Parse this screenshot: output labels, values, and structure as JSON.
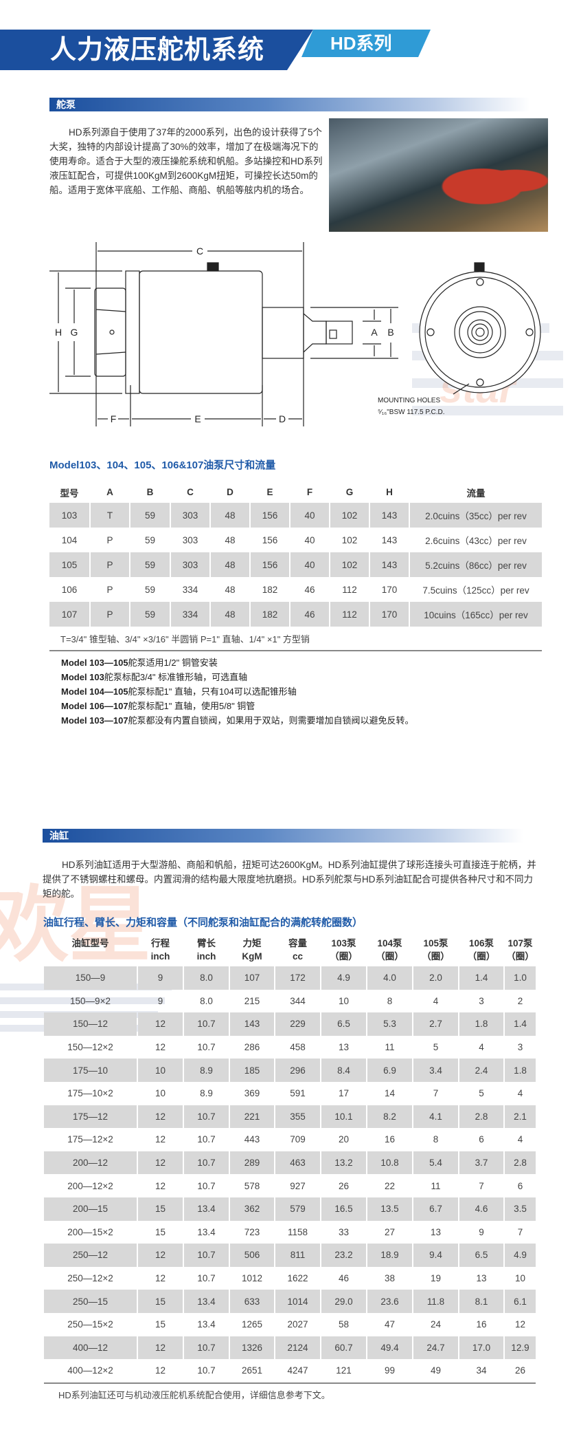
{
  "header": {
    "title": "人力液压舵机系统",
    "series": "HD系列"
  },
  "pump_section": {
    "title": "舵泵",
    "paragraph": "HD系列源自于使用了37年的2000系列，出色的设计获得了5个大奖，独特的内部设计提高了30%的效率，增加了在极端海况下的使用寿命。适合于大型的液压操舵系统和帆船。多站操控和HD系列液压缸配合，可提供100KgM到2600KgM扭矩，可操控长达50m的船。适用于宽体平底船、工作船、商船、帆船等舷内机的场合。"
  },
  "diagram": {
    "labels": {
      "A": "A",
      "B": "B",
      "C": "C",
      "D": "D",
      "E": "E",
      "F": "F",
      "G": "G",
      "H": "H"
    },
    "mounting_line1": "MOUNTING HOLES",
    "mounting_line2": "⁵⁄₁₆\"BSW 117.5 P.C.D."
  },
  "watermark": {
    "text_cn": "欢星",
    "text_en": "star"
  },
  "pump_table": {
    "title": "Model103、104、105、106&107油泵尺寸和流量",
    "headers": [
      "型号",
      "A",
      "B",
      "C",
      "D",
      "E",
      "F",
      "G",
      "H",
      "流量"
    ],
    "rows": [
      [
        "103",
        "T",
        "59",
        "303",
        "48",
        "156",
        "40",
        "102",
        "143",
        "2.0cuins（35cc）per rev"
      ],
      [
        "104",
        "P",
        "59",
        "303",
        "48",
        "156",
        "40",
        "102",
        "143",
        "2.6cuins（43cc）per rev"
      ],
      [
        "105",
        "P",
        "59",
        "303",
        "48",
        "156",
        "40",
        "102",
        "143",
        "5.2cuins（86cc）per rev"
      ],
      [
        "106",
        "P",
        "59",
        "334",
        "48",
        "182",
        "46",
        "112",
        "170",
        "7.5cuins（125cc）per rev"
      ],
      [
        "107",
        "P",
        "59",
        "334",
        "48",
        "182",
        "46",
        "112",
        "170",
        "10cuins（165cc）per rev"
      ]
    ],
    "legend": "T=3/4\" 锥型轴、3/4\" ×3/16\" 半圆销     P=1\" 直轴、1/4\" ×1\" 方型销",
    "notes": [
      {
        "model": "Model 103—105",
        "text": "舵泵适用1/2\" 铜管安装"
      },
      {
        "model": "Model 103",
        "text": "舵泵标配3/4\" 标准锥形轴，可选直轴"
      },
      {
        "model": "Model 104—105",
        "text": "舵泵标配1\" 直轴，只有104可以选配锥形轴"
      },
      {
        "model": "Model 106—107",
        "text": "舵泵标配1\" 直轴，使用5/8\" 铜管"
      },
      {
        "model": "Model 103—107",
        "text": "舵泵都没有内置自锁阀，如果用于双站，则需要增加自锁阀以避免反转。"
      }
    ]
  },
  "cylinder_section": {
    "title": "油缸",
    "paragraph": "HD系列油缸适用于大型游船、商船和帆船，扭矩可达2600KgM。HD系列油缸提供了球形连接头可直接连于舵柄，并提供了不锈钢螺柱和螺母。内置润滑的结构最大限度地抗磨损。HD系列舵泵与HD系列油缸配合可提供各种尺寸和不同力矩的舵。"
  },
  "cylinder_table": {
    "title": "油缸行程、臂长、力矩和容量（不同舵泵和油缸配合的满舵转舵圈数）",
    "headers": [
      [
        "油缸型号",
        ""
      ],
      [
        "行程",
        "inch"
      ],
      [
        "臂长",
        "inch"
      ],
      [
        "力矩",
        "KgM"
      ],
      [
        "容量",
        "cc"
      ],
      [
        "103泵",
        "（圈）"
      ],
      [
        "104泵",
        "（圈）"
      ],
      [
        "105泵",
        "（圈）"
      ],
      [
        "106泵",
        "（圈）"
      ],
      [
        "107泵",
        "（圈）"
      ]
    ],
    "rows": [
      [
        "150—9",
        "9",
        "8.0",
        "107",
        "172",
        "4.9",
        "4.0",
        "2.0",
        "1.4",
        "1.0"
      ],
      [
        "150—9×2",
        "9",
        "8.0",
        "215",
        "344",
        "10",
        "8",
        "4",
        "3",
        "2"
      ],
      [
        "150—12",
        "12",
        "10.7",
        "143",
        "229",
        "6.5",
        "5.3",
        "2.7",
        "1.8",
        "1.4"
      ],
      [
        "150—12×2",
        "12",
        "10.7",
        "286",
        "458",
        "13",
        "11",
        "5",
        "4",
        "3"
      ],
      [
        "175—10",
        "10",
        "8.9",
        "185",
        "296",
        "8.4",
        "6.9",
        "3.4",
        "2.4",
        "1.8"
      ],
      [
        "175—10×2",
        "10",
        "8.9",
        "369",
        "591",
        "17",
        "14",
        "7",
        "5",
        "4"
      ],
      [
        "175—12",
        "12",
        "10.7",
        "221",
        "355",
        "10.1",
        "8.2",
        "4.1",
        "2.8",
        "2.1"
      ],
      [
        "175—12×2",
        "12",
        "10.7",
        "443",
        "709",
        "20",
        "16",
        "8",
        "6",
        "4"
      ],
      [
        "200—12",
        "12",
        "10.7",
        "289",
        "463",
        "13.2",
        "10.8",
        "5.4",
        "3.7",
        "2.8"
      ],
      [
        "200—12×2",
        "12",
        "10.7",
        "578",
        "927",
        "26",
        "22",
        "11",
        "7",
        "6"
      ],
      [
        "200—15",
        "15",
        "13.4",
        "362",
        "579",
        "16.5",
        "13.5",
        "6.7",
        "4.6",
        "3.5"
      ],
      [
        "200—15×2",
        "15",
        "13.4",
        "723",
        "1158",
        "33",
        "27",
        "13",
        "9",
        "7"
      ],
      [
        "250—12",
        "12",
        "10.7",
        "506",
        "811",
        "23.2",
        "18.9",
        "9.4",
        "6.5",
        "4.9"
      ],
      [
        "250—12×2",
        "12",
        "10.7",
        "1012",
        "1622",
        "46",
        "38",
        "19",
        "13",
        "10"
      ],
      [
        "250—15",
        "15",
        "13.4",
        "633",
        "1014",
        "29.0",
        "23.6",
        "11.8",
        "8.1",
        "6.1"
      ],
      [
        "250—15×2",
        "15",
        "13.4",
        "1265",
        "2027",
        "58",
        "47",
        "24",
        "16",
        "12"
      ],
      [
        "400—12",
        "12",
        "10.7",
        "1326",
        "2124",
        "60.7",
        "49.4",
        "24.7",
        "17.0",
        "12.9"
      ],
      [
        "400—12×2",
        "12",
        "10.7",
        "2651",
        "4247",
        "121",
        "99",
        "49",
        "34",
        "26"
      ]
    ],
    "footer": "HD系列油缸还可与机动液压舵机系统配合使用，详细信息参考下文。"
  },
  "colors": {
    "brand_dark": "#1b4f9e",
    "brand_light": "#2f9bd6",
    "title_blue": "#1f5aa8",
    "row_shade": "#d8d8d8"
  }
}
